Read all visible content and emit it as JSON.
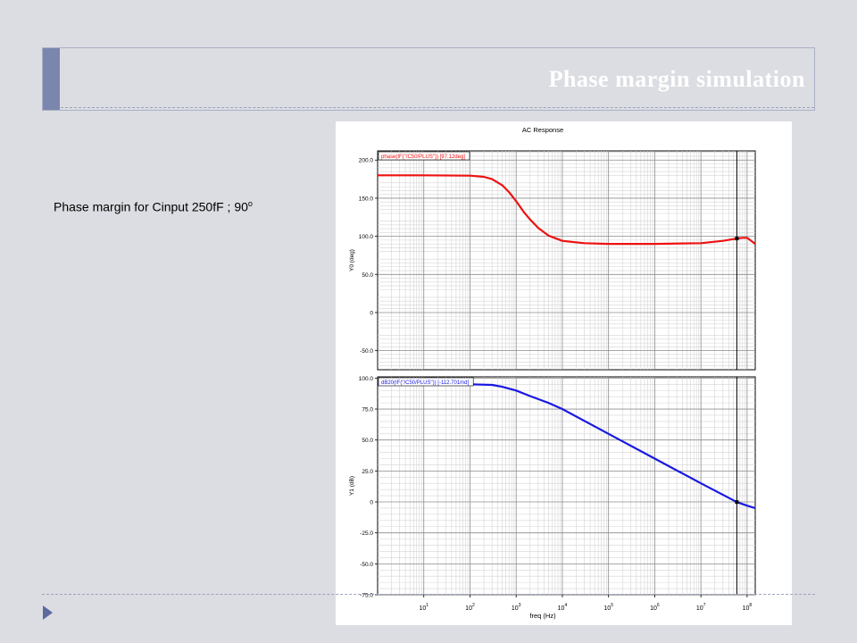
{
  "slide": {
    "title": "Phase margin simulation",
    "caption": "Phase margin for Cinput 250fF ; 90",
    "caption_sup": "o"
  },
  "chart_data": {
    "type": "line",
    "title": "AC Response",
    "xlabel": "freq (Hz)",
    "x_scale": "log",
    "xlim": [
      1,
      150000000
    ],
    "x_ticks": [
      {
        "base": "10",
        "exp": "1",
        "value": 10
      },
      {
        "base": "10",
        "exp": "2",
        "value": 100
      },
      {
        "base": "10",
        "exp": "3",
        "value": 1000
      },
      {
        "base": "10",
        "exp": "4",
        "value": 10000
      },
      {
        "base": "10",
        "exp": "5",
        "value": 100000
      },
      {
        "base": "10",
        "exp": "6",
        "value": 1000000
      },
      {
        "base": "10",
        "exp": "7",
        "value": 10000000
      },
      {
        "base": "10",
        "exp": "8",
        "value": 100000000
      }
    ],
    "marker_x": 60000000,
    "grid": true,
    "panels": [
      {
        "ylabel": "Y0 (deg)",
        "ylim": [
          -75,
          212
        ],
        "y_ticks": [
          {
            "value": 200,
            "label": "200.0"
          },
          {
            "value": 150,
            "label": "150.0"
          },
          {
            "value": 100,
            "label": "100.0"
          },
          {
            "value": 50,
            "label": "50.0"
          },
          {
            "value": 0,
            "label": "0"
          },
          {
            "value": -50,
            "label": "-50.0"
          }
        ],
        "series": [
          {
            "name": "phase(IF(\"/C50/PLUS\"))  [97.12deg]",
            "color": "#ee1111",
            "x": [
              1,
              10,
              100,
              200,
              300,
              500,
              700,
              1000,
              1500,
              2000,
              3000,
              5000,
              10000,
              30000,
              100000,
              1000000,
              10000000,
              30000000,
              60000000,
              80000000,
              100000000,
              150000000
            ],
            "y": [
              180,
              180,
              179.5,
              178,
              175,
              167,
              158,
              146,
              131,
              122,
              111,
              101,
              94,
              91,
              90,
              90,
              91,
              94,
              97.12,
              98,
              98,
              90
            ]
          }
        ],
        "marker": {
          "x": 60000000,
          "y": 97.12
        }
      },
      {
        "ylabel": "Y1 (dB)",
        "ylim": [
          -75,
          101
        ],
        "y_ticks": [
          {
            "value": 100,
            "label": "100.0"
          },
          {
            "value": 75,
            "label": "75.0"
          },
          {
            "value": 50,
            "label": "50.0"
          },
          {
            "value": 25,
            "label": "25.0"
          },
          {
            "value": 0,
            "label": "0"
          },
          {
            "value": -25,
            "label": "-25.0"
          },
          {
            "value": -50,
            "label": "-50.0"
          },
          {
            "value": -75,
            "label": "-75.0"
          }
        ],
        "series": [
          {
            "name": "dB20(IF(\"/C50/PLUS\"))  [-112.701md]",
            "color": "#1818e0",
            "x": [
              1,
              10,
              100,
              300,
              500,
              1000,
              2000,
              5000,
              10000,
              100000,
              1000000,
              10000000,
              60000000,
              100000000,
              150000000
            ],
            "y": [
              95,
              95,
              95,
              94.5,
              93,
              90,
              85.5,
              80,
              75,
              55,
              35,
              15,
              -0.11,
              -3,
              -5
            ]
          }
        ],
        "marker": {
          "x": 60000000,
          "y": -0.11
        }
      }
    ]
  }
}
